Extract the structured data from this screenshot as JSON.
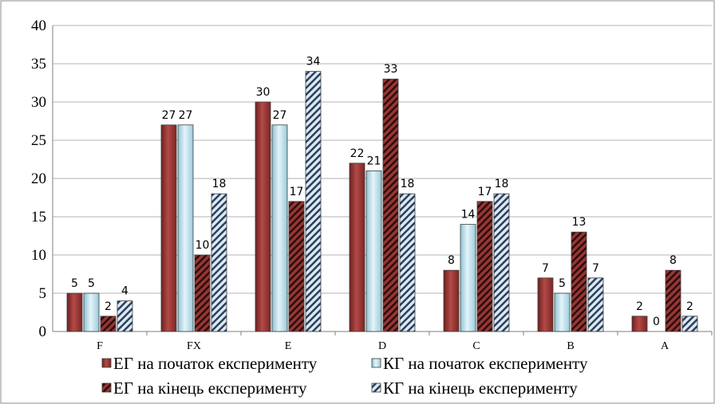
{
  "chart_data": {
    "type": "bar",
    "title": "",
    "xlabel": "",
    "ylabel": "",
    "ylim": [
      0,
      40
    ],
    "y_ticks": [
      0,
      5,
      10,
      15,
      20,
      25,
      30,
      35,
      40
    ],
    "grid": "horizontal",
    "legend_position": "bottom",
    "categories": [
      "F",
      "FX",
      "E",
      "D",
      "C",
      "B",
      "A"
    ],
    "series": [
      {
        "name": "ЕГ на початок експерименту",
        "values": [
          5,
          27,
          30,
          22,
          8,
          7,
          2
        ],
        "color": "#963634",
        "pattern": "solid"
      },
      {
        "name": "КГ на початок експерименту",
        "values": [
          5,
          27,
          27,
          21,
          14,
          5,
          0
        ],
        "color": "#b7dde8",
        "pattern": "solid"
      },
      {
        "name": "ЕГ на кінець експерименту",
        "values": [
          2,
          10,
          17,
          33,
          17,
          13,
          8
        ],
        "color": "#963634",
        "pattern": "hatched-dark"
      },
      {
        "name": "КГ на кінець експерименту",
        "values": [
          4,
          18,
          34,
          18,
          18,
          7,
          2
        ],
        "color": "#8eb4e3",
        "pattern": "hatched-light"
      }
    ]
  }
}
